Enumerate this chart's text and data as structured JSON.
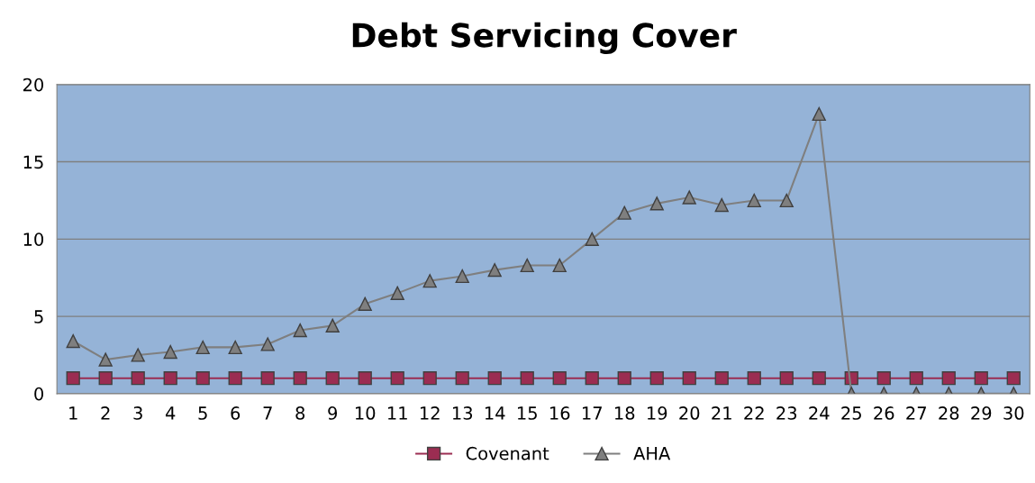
{
  "chart_data": {
    "type": "line",
    "title": "Debt Servicing Cover",
    "categories": [
      "1",
      "2",
      "3",
      "4",
      "5",
      "6",
      "7",
      "8",
      "9",
      "10",
      "11",
      "12",
      "13",
      "14",
      "15",
      "16",
      "17",
      "18",
      "19",
      "20",
      "21",
      "22",
      "23",
      "24",
      "25",
      "26",
      "27",
      "28",
      "29",
      "30"
    ],
    "series": [
      {
        "name": "Covenant",
        "color": "#9b2d52",
        "marker": "square",
        "values": [
          1,
          1,
          1,
          1,
          1,
          1,
          1,
          1,
          1,
          1,
          1,
          1,
          1,
          1,
          1,
          1,
          1,
          1,
          1,
          1,
          1,
          1,
          1,
          1,
          1,
          1,
          1,
          1,
          1,
          1
        ]
      },
      {
        "name": "AHA",
        "color": "#7f7f7f",
        "marker": "triangle",
        "values": [
          3.4,
          2.2,
          2.5,
          2.7,
          3.0,
          3.0,
          3.2,
          4.1,
          4.4,
          5.8,
          6.5,
          7.3,
          7.6,
          8.0,
          8.3,
          8.3,
          10.0,
          11.7,
          12.3,
          12.7,
          12.2,
          12.5,
          12.5,
          18.1,
          0,
          0,
          0,
          0,
          0,
          0
        ]
      }
    ],
    "ylim": [
      0,
      20
    ],
    "yticks": [
      0,
      5,
      10,
      15,
      20
    ],
    "grid": "y",
    "legend": "bottom",
    "line_style": "solid"
  }
}
